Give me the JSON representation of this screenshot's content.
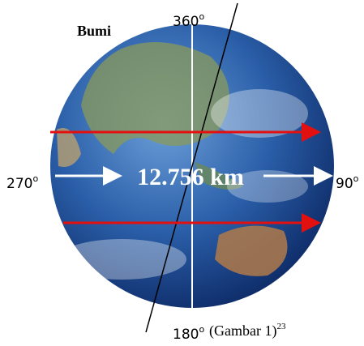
{
  "title": "Bumi",
  "diameter": "12.756 km",
  "labels": {
    "top": {
      "text": "360",
      "sup": "o"
    },
    "left": {
      "text": "270",
      "sup": "o"
    },
    "right": {
      "text": "90",
      "sup": "o"
    },
    "bottom": {
      "text": "180",
      "sup": "o"
    }
  },
  "caption": {
    "text": "(Gambar 1)",
    "sup": "23"
  }
}
